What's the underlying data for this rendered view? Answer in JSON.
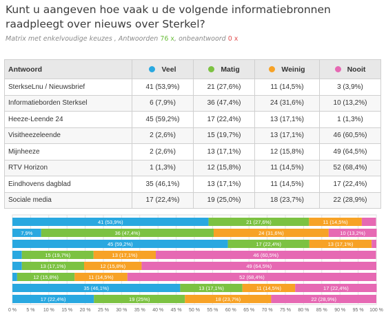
{
  "header": {
    "title": "Kunt u aangeven hoe vaak u de volgende informatiebronnen raadpleegt over nieuws over Sterkel?",
    "subtitle_prefix": "Matrix met enkelvoudige keuzes , Antwoorden ",
    "answers_count": "76 x",
    "subtitle_mid": ", onbeantwoord ",
    "unanswered_count": "0 x"
  },
  "table": {
    "first_header": "Antwoord",
    "columns": [
      {
        "label": "Veel",
        "color": "#29a8e0"
      },
      {
        "label": "Matig",
        "color": "#7cc242"
      },
      {
        "label": "Weinig",
        "color": "#f7a226"
      },
      {
        "label": "Nooit",
        "color": "#e669b3"
      }
    ],
    "rows": [
      {
        "label": "SterkseLnu / Nieuwsbrief",
        "cells": [
          "41 (53,9%)",
          "21 (27,6%)",
          "11 (14,5%)",
          "3 (3,9%)"
        ]
      },
      {
        "label": "Informatieborden Sterksel",
        "cells": [
          "6 (7,9%)",
          "36 (47,4%)",
          "24 (31,6%)",
          "10 (13,2%)"
        ]
      },
      {
        "label": "Heeze-Leende 24",
        "cells": [
          "45 (59,2%)",
          "17 (22,4%)",
          "13 (17,1%)",
          "1 (1,3%)"
        ]
      },
      {
        "label": "Visitheezeleende",
        "cells": [
          "2 (2,6%)",
          "15 (19,7%)",
          "13 (17,1%)",
          "46 (60,5%)"
        ]
      },
      {
        "label": "Mijnheeze",
        "cells": [
          "2 (2,6%)",
          "13 (17,1%)",
          "12 (15,8%)",
          "49 (64,5%)"
        ]
      },
      {
        "label": "RTV Horizon",
        "cells": [
          "1 (1,3%)",
          "12 (15,8%)",
          "11 (14,5%)",
          "52 (68,4%)"
        ]
      },
      {
        "label": "Eindhovens dagblad",
        "cells": [
          "35 (46,1%)",
          "13 (17,1%)",
          "11 (14,5%)",
          "17 (22,4%)"
        ]
      },
      {
        "label": "Sociale media",
        "cells": [
          "17 (22,4%)",
          "19 (25,0%)",
          "18 (23,7%)",
          "22 (28,9%)"
        ]
      }
    ]
  },
  "chart_data": {
    "type": "bar",
    "stacked": true,
    "orientation": "horizontal",
    "percent_scale": true,
    "xlim": [
      0,
      100
    ],
    "x_ticks": [
      "0 %",
      "5 %",
      "10 %",
      "15 %",
      "20 %",
      "25 %",
      "30 %",
      "35 %",
      "40 %",
      "45 %",
      "50 %",
      "55 %",
      "60 %",
      "65 %",
      "70 %",
      "75 %",
      "80 %",
      "85 %",
      "90 %",
      "95 %",
      "100 %"
    ],
    "grid": true,
    "series_colors": [
      "#29a8e0",
      "#7cc242",
      "#f7a226",
      "#e669b3"
    ],
    "rows": [
      {
        "values": [
          53.9,
          27.6,
          14.5,
          3.9
        ],
        "labels": [
          "41 (53,9%)",
          "21 (27,6%)",
          "11 (14,5%)",
          ""
        ]
      },
      {
        "values": [
          7.9,
          47.4,
          31.6,
          13.2
        ],
        "labels": [
          "7,9%",
          "36 (47,4%)",
          "24 (31,6%)",
          "10 (13,2%)"
        ]
      },
      {
        "values": [
          59.2,
          22.4,
          17.1,
          1.3
        ],
        "labels": [
          "45 (59,2%)",
          "17 (22,4%)",
          "13 (17,1%)",
          ""
        ]
      },
      {
        "values": [
          2.6,
          19.7,
          17.1,
          60.5
        ],
        "labels": [
          "",
          "15 (19,7%)",
          "13 (17,1%)",
          "46 (60,5%)"
        ]
      },
      {
        "values": [
          2.6,
          17.1,
          15.8,
          64.5
        ],
        "labels": [
          "",
          "13 (17,1%)",
          "12 (15,8%)",
          "49 (64,5%)"
        ]
      },
      {
        "values": [
          1.3,
          15.8,
          14.5,
          68.4
        ],
        "labels": [
          "",
          "12 (15,8%)",
          "11 (14,5%)",
          "52 (68,4%)"
        ]
      },
      {
        "values": [
          46.1,
          17.1,
          14.5,
          22.4
        ],
        "labels": [
          "35 (46,1%)",
          "13 (17,1%)",
          "11 (14,5%)",
          "17 (22,4%)"
        ]
      },
      {
        "values": [
          22.4,
          25.0,
          23.7,
          28.9
        ],
        "labels": [
          "17 (22,4%)",
          "19 (25%)",
          "18 (23,7%)",
          "22 (28,9%)"
        ]
      }
    ]
  }
}
